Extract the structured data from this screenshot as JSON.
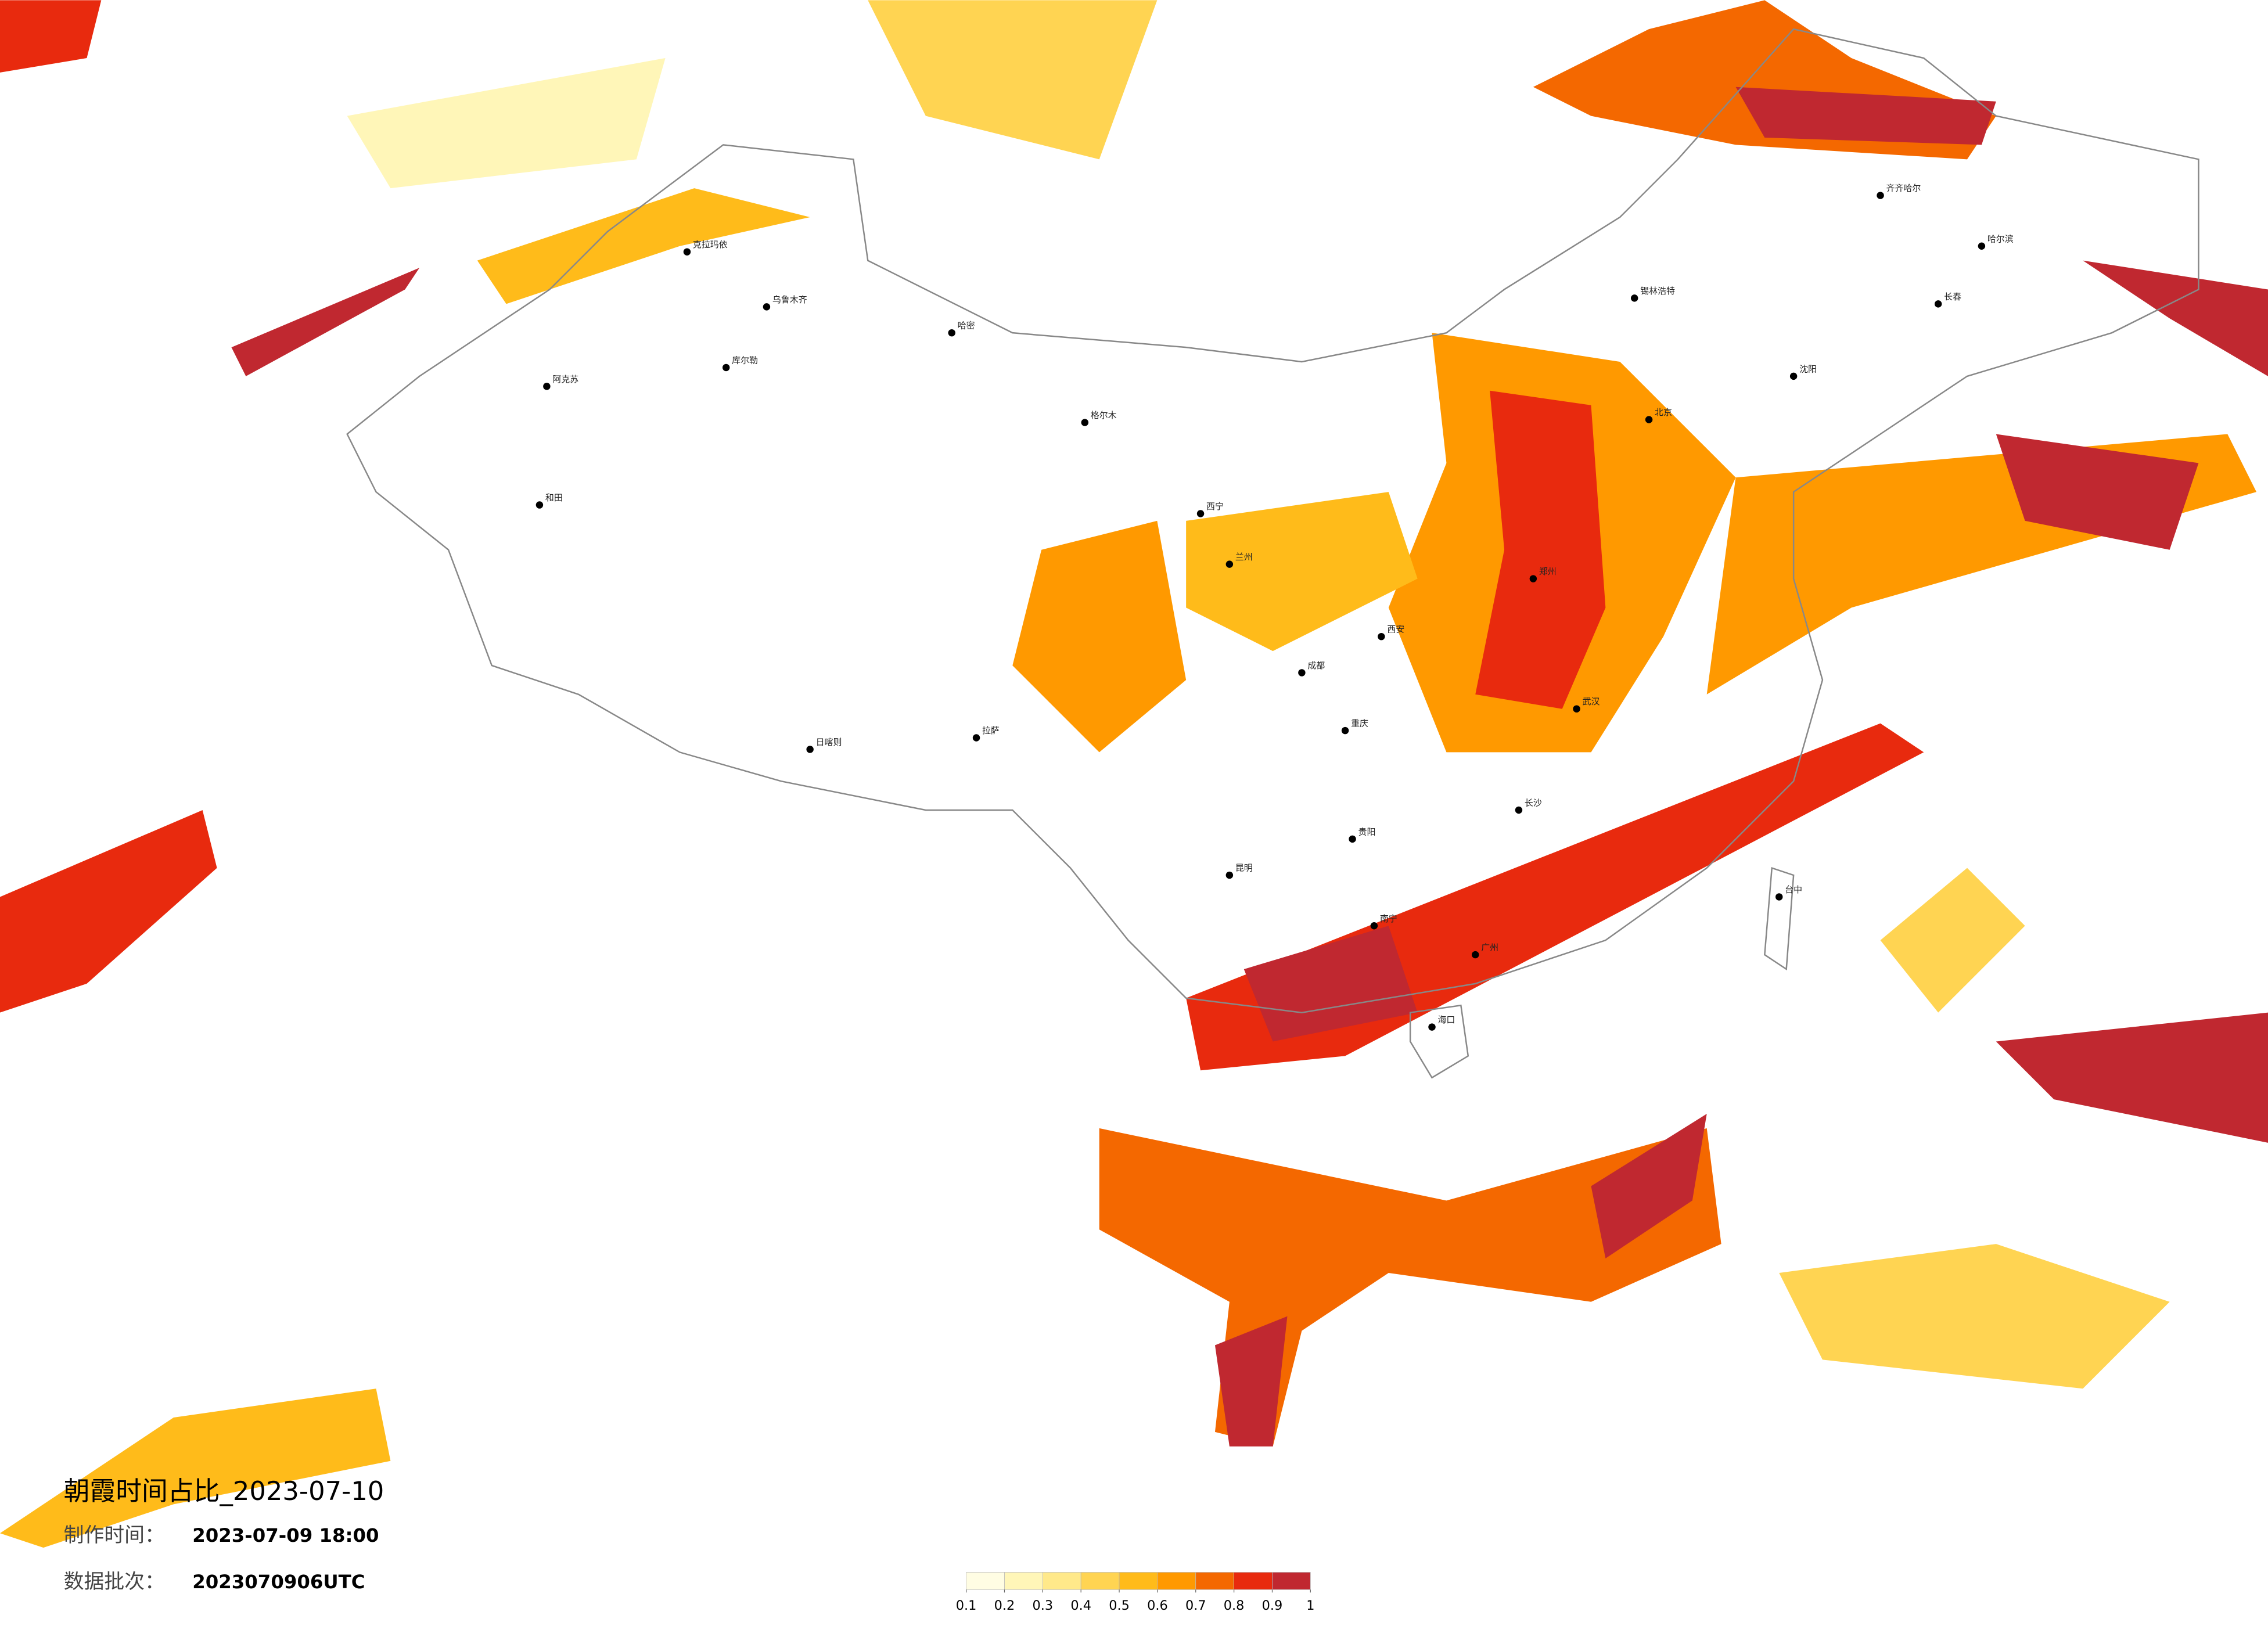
{
  "title": "朝霞时间占比_2023-07-10",
  "make_time": {
    "label": "制作时间：",
    "value": "2023-07-09 18:00"
  },
  "batch": {
    "label": "数据批次：",
    "value": "2023070906UTC"
  },
  "colorbar": {
    "colors": [
      "#fffde3",
      "#fff6b8",
      "#ffe98a",
      "#ffd452",
      "#ffbb1a",
      "#ff9900",
      "#f46800",
      "#e82a0e",
      "#c02830"
    ],
    "ticks": [
      0.1,
      0.2,
      0.3,
      0.4,
      0.5,
      0.6,
      0.7,
      0.8,
      0.9,
      1
    ]
  },
  "cities": [
    "克拉玛依",
    "乌鲁木齐",
    "哈密",
    "库尔勒",
    "阿克苏",
    "和田",
    "格尔木",
    "西宁",
    "兰州",
    "西安",
    "成都",
    "重庆",
    "贵阳",
    "昆明",
    "南宁",
    "广州",
    "海口",
    "长沙",
    "武汉",
    "郑州",
    "北京",
    "沈阳",
    "长春",
    "哈尔滨",
    "齐齐哈尔",
    "锡林浩特",
    "拉萨",
    "日喀则",
    "台中"
  ]
}
